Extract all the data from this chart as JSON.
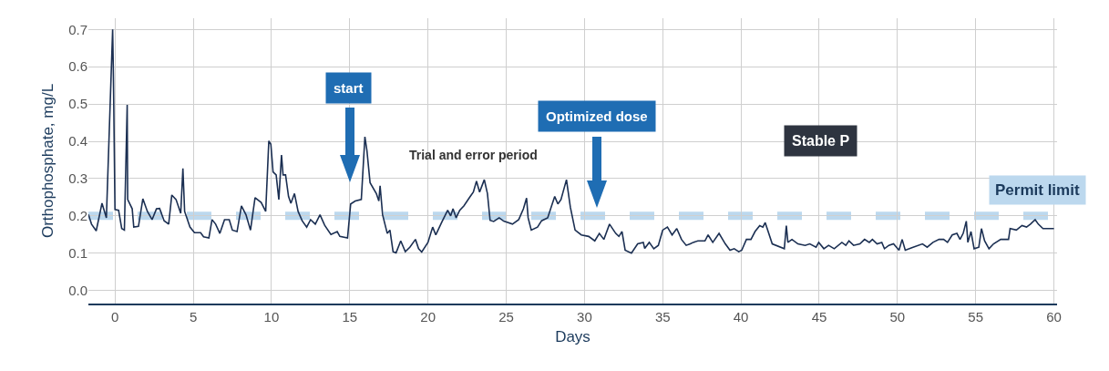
{
  "chart_data": {
    "type": "line",
    "xlabel": "Days",
    "ylabel": "Orthophosphate, mg/L",
    "xlim": [
      -1.7,
      60.2
    ],
    "ylim": [
      -0.035,
      0.73
    ],
    "xticks": [
      0,
      5,
      10,
      15,
      20,
      25,
      30,
      35,
      40,
      45,
      50,
      55,
      60
    ],
    "yticks": [
      {
        "value": 0,
        "label": "0.0"
      },
      0.1,
      0.2,
      0.3,
      0.4,
      0.5,
      0.6,
      0.7
    ],
    "grid": true,
    "marker": "none",
    "line_style": "solid",
    "series": [
      {
        "color": "#1b2f52",
        "x": [
          -1.7,
          -1.5,
          -1.2,
          -0.83,
          -0.55,
          -0.15,
          -0.1,
          0.0,
          0.23,
          0.43,
          0.6,
          0.78,
          0.81,
          1.1,
          1.2,
          1.5,
          1.78,
          2.07,
          2.37,
          2.65,
          2.85,
          3.14,
          3.43,
          3.63,
          3.9,
          4.2,
          4.34,
          4.45,
          4.79,
          5.08,
          5.47,
          5.66,
          6.0,
          6.2,
          6.43,
          6.7,
          7.0,
          7.3,
          7.5,
          7.8,
          8.08,
          8.37,
          8.66,
          8.95,
          9.34,
          9.63,
          9.83,
          9.96,
          10.1,
          10.3,
          10.47,
          10.64,
          10.74,
          10.9,
          11.09,
          11.24,
          11.47,
          11.7,
          11.96,
          12.25,
          12.5,
          12.8,
          13.1,
          13.4,
          13.8,
          14.2,
          14.37,
          14.86,
          15.06,
          15.35,
          15.74,
          15.97,
          16.1,
          16.3,
          16.7,
          16.86,
          16.94,
          17.1,
          17.4,
          17.57,
          17.77,
          17.96,
          18.26,
          18.55,
          18.84,
          19.2,
          19.4,
          19.6,
          20.0,
          20.3,
          20.5,
          20.87,
          21.26,
          21.45,
          21.6,
          21.8,
          22.03,
          22.3,
          22.7,
          22.9,
          23.1,
          23.3,
          23.6,
          23.8,
          23.97,
          24.2,
          24.55,
          24.84,
          25.4,
          25.8,
          26.1,
          26.3,
          26.4,
          26.6,
          27.0,
          27.26,
          27.65,
          27.94,
          28.1,
          28.3,
          28.5,
          28.85,
          29.1,
          29.4,
          29.8,
          30.27,
          30.66,
          30.95,
          31.24,
          31.6,
          32.0,
          32.2,
          32.4,
          32.6,
          33.0,
          33.4,
          33.76,
          33.85,
          34.14,
          34.43,
          34.72,
          35.0,
          35.3,
          35.6,
          35.9,
          36.2,
          36.5,
          36.76,
          36.95,
          37.25,
          37.7,
          37.9,
          38.2,
          38.6,
          39.0,
          39.3,
          39.57,
          39.86,
          40.05,
          40.35,
          40.64,
          40.9,
          41.2,
          41.4,
          41.55,
          42.0,
          42.77,
          42.9,
          43.0,
          43.26,
          43.64,
          44.1,
          44.4,
          44.8,
          44.97,
          45.3,
          45.6,
          45.96,
          46.45,
          46.7,
          46.9,
          47.2,
          47.6,
          47.9,
          48.2,
          48.4,
          48.7,
          49.0,
          49.17,
          49.45,
          49.75,
          50.1,
          50.3,
          50.5,
          51.0,
          51.6,
          51.9,
          52.27,
          52.66,
          52.95,
          53.2,
          53.5,
          53.8,
          54.0,
          54.2,
          54.4,
          54.5,
          54.7,
          54.9,
          55.2,
          55.37,
          55.57,
          55.85,
          56.14,
          56.6,
          57.1,
          57.2,
          57.6,
          57.96,
          58.25,
          58.5,
          58.8,
          59.0,
          59.3,
          60.0
        ],
        "values": [
          0.204,
          0.178,
          0.16,
          0.234,
          0.195,
          0.7,
          0.572,
          0.217,
          0.215,
          0.166,
          0.162,
          0.498,
          0.244,
          0.219,
          0.17,
          0.172,
          0.246,
          0.212,
          0.19,
          0.219,
          0.22,
          0.187,
          0.178,
          0.256,
          0.244,
          0.207,
          0.327,
          0.212,
          0.17,
          0.155,
          0.155,
          0.144,
          0.141,
          0.19,
          0.178,
          0.153,
          0.19,
          0.19,
          0.162,
          0.158,
          0.227,
          0.203,
          0.162,
          0.249,
          0.236,
          0.212,
          0.401,
          0.392,
          0.318,
          0.31,
          0.244,
          0.363,
          0.31,
          0.31,
          0.252,
          0.234,
          0.26,
          0.212,
          0.187,
          0.17,
          0.19,
          0.178,
          0.203,
          0.175,
          0.15,
          0.158,
          0.145,
          0.141,
          0.232,
          0.24,
          0.244,
          0.412,
          0.375,
          0.289,
          0.26,
          0.24,
          0.281,
          0.203,
          0.153,
          0.162,
          0.104,
          0.101,
          0.133,
          0.104,
          0.116,
          0.137,
          0.112,
          0.103,
          0.129,
          0.17,
          0.149,
          0.182,
          0.215,
          0.2,
          0.219,
          0.195,
          0.215,
          0.227,
          0.252,
          0.264,
          0.293,
          0.264,
          0.297,
          0.26,
          0.188,
          0.185,
          0.195,
          0.186,
          0.178,
          0.19,
          0.219,
          0.248,
          0.195,
          0.162,
          0.17,
          0.187,
          0.195,
          0.232,
          0.252,
          0.232,
          0.244,
          0.297,
          0.223,
          0.162,
          0.149,
          0.145,
          0.133,
          0.153,
          0.137,
          0.178,
          0.153,
          0.145,
          0.158,
          0.108,
          0.1,
          0.125,
          0.129,
          0.113,
          0.129,
          0.112,
          0.121,
          0.162,
          0.17,
          0.149,
          0.166,
          0.137,
          0.121,
          0.125,
          0.129,
          0.133,
          0.133,
          0.149,
          0.129,
          0.153,
          0.125,
          0.108,
          0.112,
          0.104,
          0.108,
          0.137,
          0.137,
          0.158,
          0.174,
          0.17,
          0.182,
          0.125,
          0.112,
          0.174,
          0.129,
          0.137,
          0.125,
          0.121,
          0.125,
          0.116,
          0.129,
          0.112,
          0.121,
          0.112,
          0.129,
          0.121,
          0.133,
          0.121,
          0.125,
          0.137,
          0.129,
          0.137,
          0.125,
          0.129,
          0.112,
          0.121,
          0.125,
          0.108,
          0.137,
          0.108,
          0.116,
          0.125,
          0.116,
          0.129,
          0.137,
          0.137,
          0.129,
          0.149,
          0.153,
          0.137,
          0.153,
          0.186,
          0.129,
          0.158,
          0.112,
          0.116,
          0.166,
          0.133,
          0.112,
          0.125,
          0.137,
          0.137,
          0.166,
          0.162,
          0.174,
          0.17,
          0.178,
          0.19,
          0.178,
          0.166,
          0.166
        ]
      }
    ],
    "ref_lines": [
      {
        "axis": "y",
        "value": 0.2,
        "label": "Permit limit",
        "color": "#bcd8ee",
        "line_style": "dashed"
      }
    ],
    "annotations": [
      "start",
      "Trial and error period",
      "Optimized dose",
      "Stable P"
    ]
  }
}
